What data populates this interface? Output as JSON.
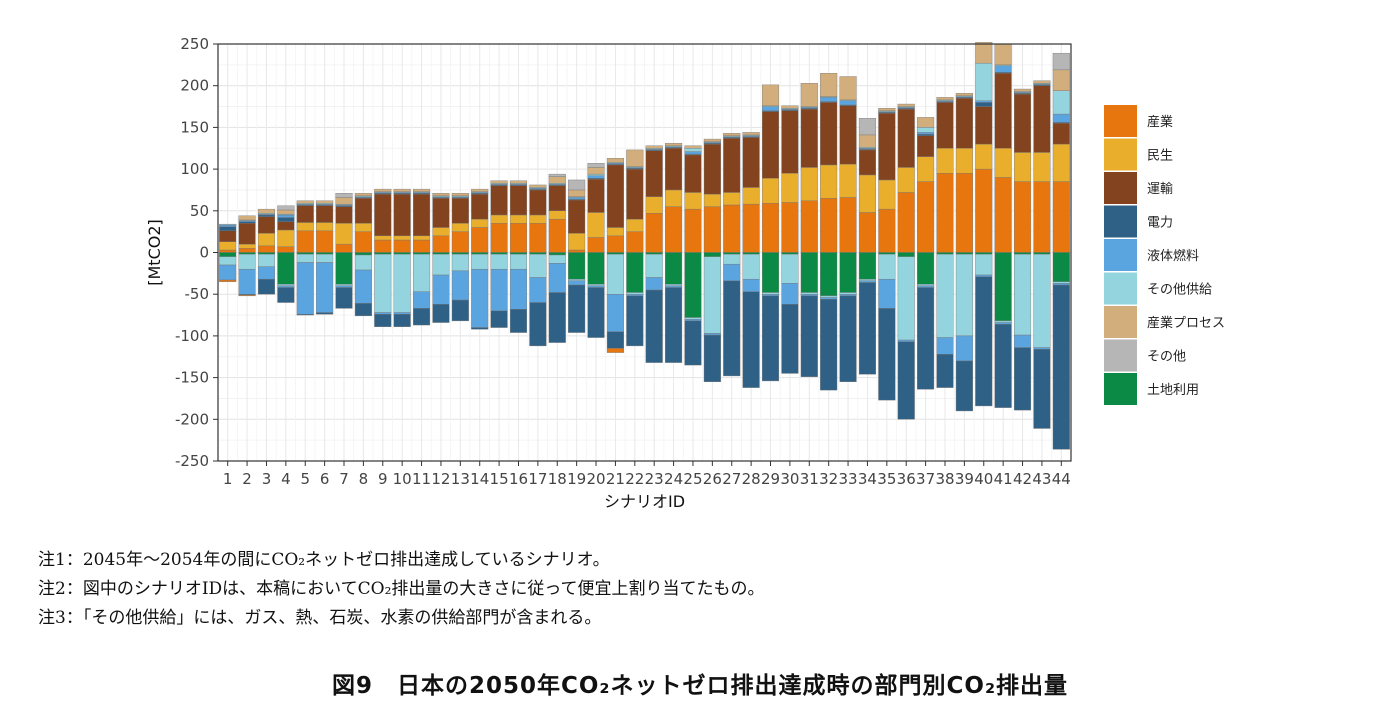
{
  "chart_data": {
    "type": "bar",
    "stacked": true,
    "ylabel": "[MtCO2]",
    "xlabel": "シナリオID",
    "ylim": [
      -250,
      250
    ],
    "yticks": [
      250,
      200,
      150,
      100,
      50,
      0,
      -50,
      -100,
      -150,
      -200,
      -250
    ],
    "grid": true,
    "legend_position": "right",
    "categories": [
      "1",
      "2",
      "3",
      "4",
      "5",
      "6",
      "7",
      "8",
      "9",
      "10",
      "11",
      "12",
      "13",
      "14",
      "15",
      "16",
      "17",
      "18",
      "19",
      "20",
      "21",
      "22",
      "23",
      "24",
      "25",
      "26",
      "27",
      "28",
      "29",
      "30",
      "31",
      "32",
      "33",
      "34",
      "35",
      "36",
      "37",
      "38",
      "39",
      "40",
      "41",
      "42",
      "43",
      "44"
    ],
    "series": [
      {
        "name": "産業",
        "color": "#E8760E",
        "values": [
          3,
          5,
          8,
          7,
          26,
          26,
          10,
          25,
          15,
          15,
          15,
          20,
          25,
          30,
          35,
          35,
          35,
          40,
          3,
          18,
          20,
          25,
          47,
          55,
          52,
          55,
          57,
          58,
          59,
          60,
          62,
          65,
          66,
          48,
          52,
          72,
          85,
          95,
          95,
          100,
          90,
          85,
          85,
          85
        ]
      },
      {
        "name": "民生",
        "color": "#E8AE2C",
        "values": [
          10,
          5,
          15,
          20,
          10,
          10,
          25,
          10,
          5,
          5,
          5,
          10,
          10,
          10,
          10,
          10,
          10,
          10,
          20,
          30,
          10,
          15,
          20,
          20,
          20,
          15,
          15,
          20,
          30,
          35,
          40,
          40,
          40,
          45,
          35,
          30,
          30,
          30,
          30,
          30,
          35,
          35,
          35,
          45
        ]
      },
      {
        "name": "運輸",
        "color": "#83431E",
        "values": [
          13,
          25,
          20,
          10,
          20,
          20,
          20,
          30,
          50,
          50,
          50,
          35,
          30,
          30,
          35,
          35,
          30,
          30,
          40,
          40,
          75,
          60,
          55,
          50,
          45,
          60,
          65,
          60,
          80,
          75,
          70,
          75,
          70,
          30,
          80,
          70,
          25,
          55,
          60,
          45,
          90,
          70,
          80,
          25
        ]
      },
      {
        "name": "電力",
        "color": "#2F6186",
        "values": [
          5,
          2,
          2,
          5,
          1,
          1,
          1,
          1,
          1,
          1,
          1,
          1,
          1,
          1,
          1,
          1,
          1,
          1,
          1,
          1,
          1,
          1,
          1,
          1,
          1,
          1,
          1,
          1,
          1,
          1,
          1,
          1,
          1,
          1,
          1,
          1,
          2,
          1,
          1,
          5,
          1,
          1,
          1,
          1
        ]
      },
      {
        "name": "液体燃料",
        "color": "#5AA4E0",
        "values": [
          2,
          1,
          1,
          3,
          1,
          1,
          1,
          1,
          1,
          1,
          1,
          1,
          1,
          1,
          1,
          1,
          1,
          1,
          2,
          3,
          1,
          1,
          1,
          1,
          3,
          1,
          1,
          1,
          5,
          1,
          1,
          5,
          5,
          1,
          1,
          1,
          2,
          1,
          1,
          2,
          8,
          1,
          1,
          10
        ]
      },
      {
        "name": "その他供給",
        "color": "#93D4DE",
        "values": [
          1,
          1,
          1,
          1,
          1,
          1,
          1,
          1,
          1,
          1,
          1,
          1,
          1,
          1,
          1,
          1,
          1,
          1,
          1,
          2,
          1,
          1,
          1,
          1,
          4,
          1,
          1,
          1,
          1,
          1,
          1,
          1,
          1,
          1,
          1,
          1,
          6,
          1,
          1,
          45,
          1,
          1,
          1,
          28
        ]
      },
      {
        "name": "産業プロセス",
        "color": "#D2AE7C",
        "values": [
          0,
          5,
          5,
          5,
          3,
          3,
          8,
          3,
          3,
          3,
          3,
          3,
          3,
          3,
          3,
          3,
          3,
          8,
          8,
          8,
          5,
          20,
          3,
          3,
          3,
          3,
          3,
          3,
          25,
          3,
          28,
          28,
          28,
          15,
          3,
          3,
          12,
          3,
          3,
          25,
          25,
          3,
          3,
          25
        ]
      },
      {
        "name": "その他",
        "color": "#B6B6B6",
        "values": [
          0,
          0,
          0,
          5,
          0,
          0,
          5,
          0,
          0,
          0,
          0,
          0,
          0,
          0,
          0,
          0,
          0,
          3,
          12,
          5,
          0,
          0,
          0,
          0,
          0,
          0,
          0,
          0,
          0,
          0,
          0,
          0,
          0,
          20,
          0,
          0,
          0,
          0,
          0,
          0,
          0,
          0,
          0,
          20
        ]
      }
    ],
    "negative_series": [
      {
        "name": "土地利用",
        "color": "#0A8A44",
        "values": [
          -5,
          -2,
          -2,
          -38,
          -2,
          -2,
          -38,
          -3,
          -2,
          -2,
          -2,
          -2,
          -2,
          -2,
          -2,
          -2,
          -2,
          -3,
          -32,
          -38,
          -2,
          -48,
          -2,
          -38,
          -78,
          -5,
          -2,
          -2,
          -48,
          -2,
          -48,
          -52,
          -48,
          -32,
          -2,
          -5,
          -38,
          -2,
          -2,
          -2,
          -82,
          -2,
          -2,
          -35
        ]
      },
      {
        "name": "その他",
        "color": "#B6B6B6",
        "values": [
          0,
          0,
          0,
          0,
          0,
          0,
          0,
          0,
          0,
          0,
          0,
          0,
          0,
          0,
          0,
          0,
          0,
          0,
          0,
          0,
          0,
          0,
          0,
          0,
          0,
          0,
          0,
          0,
          0,
          0,
          0,
          0,
          0,
          0,
          0,
          0,
          0,
          0,
          0,
          0,
          0,
          0,
          0,
          0
        ]
      },
      {
        "name": "産業プロセス",
        "color": "#D2AE7C",
        "values": [
          0,
          0,
          0,
          0,
          0,
          0,
          0,
          0,
          0,
          0,
          0,
          0,
          0,
          0,
          0,
          0,
          0,
          0,
          0,
          0,
          0,
          0,
          0,
          0,
          0,
          0,
          0,
          0,
          0,
          0,
          0,
          0,
          0,
          0,
          0,
          0,
          0,
          0,
          0,
          0,
          0,
          0,
          0,
          0
        ]
      },
      {
        "name": "その他供給",
        "color": "#93D4DE",
        "values": [
          -10,
          -18,
          -15,
          -2,
          -10,
          -10,
          -2,
          -18,
          -70,
          -70,
          -45,
          -25,
          -20,
          -18,
          -18,
          -18,
          -28,
          -10,
          -2,
          -2,
          -48,
          -2,
          -28,
          -2,
          -2,
          -92,
          -12,
          -30,
          -2,
          -35,
          -2,
          -2,
          -2,
          -2,
          -30,
          -100,
          -2,
          -100,
          -98,
          -25,
          -2,
          -97,
          -112,
          -2
        ]
      },
      {
        "name": "液体燃料",
        "color": "#5AA4E0",
        "values": [
          -18,
          -30,
          -15,
          -2,
          -62,
          -60,
          -2,
          -40,
          -2,
          -2,
          -20,
          -35,
          -35,
          -70,
          -50,
          -48,
          -30,
          -35,
          -5,
          -2,
          -45,
          -2,
          -15,
          -2,
          -2,
          -2,
          -20,
          -15,
          -2,
          -25,
          -2,
          -2,
          -2,
          -2,
          -35,
          -2,
          -2,
          -20,
          -30,
          -2,
          -2,
          -15,
          -2,
          -2
        ]
      },
      {
        "name": "電力",
        "color": "#2F6186",
        "values": [
          0,
          -1,
          -18,
          -18,
          -1,
          -2,
          -25,
          -15,
          -15,
          -15,
          -20,
          -22,
          -25,
          -2,
          -20,
          -28,
          -52,
          -60,
          -57,
          -60,
          -20,
          -60,
          -87,
          -90,
          -53,
          -56,
          -114,
          -115,
          -102,
          -83,
          -97,
          -109,
          -103,
          -110,
          -110,
          -93,
          -122,
          -40,
          -60,
          -155,
          -100,
          -75,
          -95,
          -197
        ]
      },
      {
        "name": "産業",
        "color": "#E8760E",
        "values": [
          -2,
          -1,
          0,
          0,
          0,
          0,
          0,
          0,
          0,
          0,
          0,
          0,
          0,
          0,
          0,
          0,
          0,
          0,
          0,
          0,
          -5,
          0,
          0,
          0,
          0,
          0,
          0,
          0,
          0,
          0,
          0,
          0,
          0,
          0,
          0,
          0,
          0,
          0,
          0,
          0,
          0,
          0,
          0,
          0
        ]
      }
    ],
    "legend": [
      "産業",
      "民生",
      "運輸",
      "電力",
      "液体燃料",
      "その他供給",
      "産業プロセス",
      "その他",
      "土地利用"
    ]
  },
  "legend_colors": {
    "産業": "#E8760E",
    "民生": "#E8AE2C",
    "運輸": "#83431E",
    "電力": "#2F6186",
    "液体燃料": "#5AA4E0",
    "その他供給": "#93D4DE",
    "産業プロセス": "#D2AE7C",
    "その他": "#B6B6B6",
    "土地利用": "#0A8A44"
  },
  "notes": [
    "注1：2045年～2054年の間にCO₂ネットゼロ排出達成しているシナリオ。",
    "注2：図中のシナリオIDは、本稿においてCO₂排出量の大きさに従って便宜上割り当てたもの。",
    "注3：「その他供給」には、ガス、熱、石炭、水素の供給部門が含まれる。"
  ],
  "caption": "図9　日本の2050年CO₂ネットゼロ排出達成時の部門別CO₂排出量"
}
